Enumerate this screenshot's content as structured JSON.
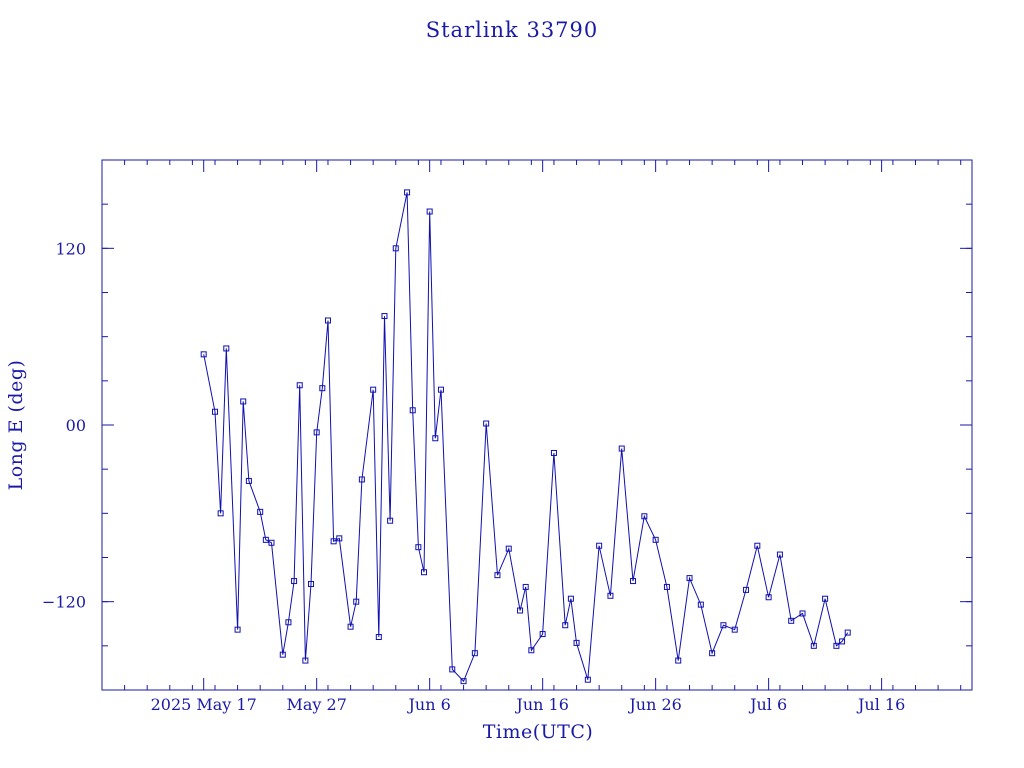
{
  "colors": {
    "ink": "#1a1aa6",
    "series": "#1010b0",
    "background": "#ffffff"
  },
  "chart_data": {
    "type": "line",
    "title": "Starlink 33790",
    "xlabel": "Time(UTC)",
    "ylabel": "Long E (deg)",
    "x_type": "date",
    "xlim": [
      "2025-05-08",
      "2025-07-24"
    ],
    "ylim": [
      -180,
      180
    ],
    "xticks": [
      {
        "date": "2025-05-17",
        "label": "2025 May 17"
      },
      {
        "date": "2025-05-27",
        "label": "May 27"
      },
      {
        "date": "2025-06-06",
        "label": "Jun  6"
      },
      {
        "date": "2025-06-16",
        "label": "Jun 16"
      },
      {
        "date": "2025-06-26",
        "label": "Jun 26"
      },
      {
        "date": "2025-07-06",
        "label": "Jul  6"
      },
      {
        "date": "2025-07-16",
        "label": "Jul 16"
      }
    ],
    "yticks": [
      {
        "value": 120,
        "label": "120"
      },
      {
        "value": 0,
        "label": "00"
      },
      {
        "value": -120,
        "label": "−120"
      }
    ],
    "grid": false,
    "markers": "open-square",
    "series": [
      {
        "x": [
          "2025-05-17",
          "2025-05-18",
          "2025-05-18.5",
          "2025-05-19",
          "2025-05-20",
          "2025-05-20.5",
          "2025-05-21",
          "2025-05-22",
          "2025-05-22.5",
          "2025-05-23",
          "2025-05-24",
          "2025-05-24.5",
          "2025-05-25",
          "2025-05-25.5",
          "2025-05-26",
          "2025-05-26.5",
          "2025-05-27",
          "2025-05-27.5",
          "2025-05-28",
          "2025-05-28.5",
          "2025-05-29",
          "2025-05-30",
          "2025-05-30.5",
          "2025-05-31",
          "2025-06-01",
          "2025-06-01.5",
          "2025-06-02",
          "2025-06-02.5",
          "2025-06-03",
          "2025-06-04",
          "2025-06-04.5",
          "2025-06-05",
          "2025-06-05.5",
          "2025-06-06",
          "2025-06-06.5",
          "2025-06-07",
          "2025-06-08",
          "2025-06-09",
          "2025-06-10",
          "2025-06-11",
          "2025-06-12",
          "2025-06-13",
          "2025-06-14",
          "2025-06-14.5",
          "2025-06-15",
          "2025-06-16",
          "2025-06-17",
          "2025-06-18",
          "2025-06-18.5",
          "2025-06-19",
          "2025-06-20",
          "2025-06-21",
          "2025-06-22",
          "2025-06-23",
          "2025-06-24",
          "2025-06-25",
          "2025-06-26",
          "2025-06-27",
          "2025-06-28",
          "2025-06-29",
          "2025-06-30",
          "2025-07-01",
          "2025-07-02",
          "2025-07-03",
          "2025-07-04",
          "2025-07-05",
          "2025-07-06",
          "2025-07-07",
          "2025-07-08",
          "2025-07-09",
          "2025-07-10",
          "2025-07-11",
          "2025-07-12",
          "2025-07-12.5",
          "2025-07-13"
        ],
        "y": [
          48,
          9,
          -60,
          52,
          -139,
          16,
          -38,
          -59,
          -78,
          -80,
          -156,
          -134,
          -106,
          27,
          -160,
          -108,
          -5,
          25,
          71,
          -79,
          -77,
          -137,
          -120,
          -37,
          24,
          -144,
          74,
          -65,
          120,
          158,
          10,
          -83,
          -100,
          145,
          -9,
          24,
          -166,
          -174,
          -155,
          1,
          -102,
          -84,
          -126,
          -110,
          -153,
          -142,
          -19,
          -136,
          -118,
          -148,
          -173,
          -82,
          -116,
          -16,
          -106,
          -62,
          -78,
          -110,
          -160,
          -104,
          -122,
          -155,
          -136,
          -139,
          -112,
          -82,
          -117,
          -88,
          -133,
          -128,
          -150,
          -118,
          -150,
          -147,
          -141
        ]
      }
    ]
  }
}
